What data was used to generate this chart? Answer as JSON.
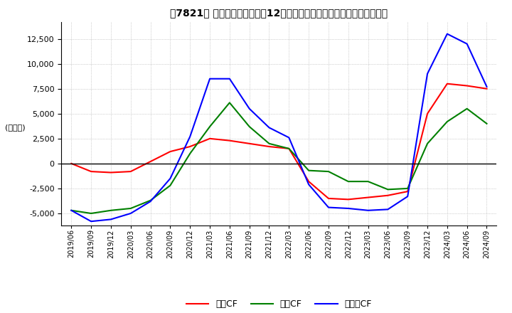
{
  "title": "【7821】 キャッシュフローの12か月移動合計の対前年同期増減額の推移",
  "ylabel": "(百万円)",
  "ylim": [
    -6200,
    14200
  ],
  "yticks": [
    -5000,
    -2500,
    0,
    2500,
    5000,
    7500,
    10000,
    12500
  ],
  "x_labels": [
    "2019/06",
    "2019/09",
    "2019/12",
    "2020/03",
    "2020/06",
    "2020/09",
    "2020/12",
    "2021/03",
    "2021/06",
    "2021/09",
    "2021/12",
    "2022/03",
    "2022/06",
    "2022/09",
    "2022/12",
    "2023/03",
    "2023/06",
    "2023/09",
    "2023/12",
    "2024/03",
    "2024/06",
    "2024/09"
  ],
  "operating_cf": [
    0,
    -800,
    -900,
    -800,
    200,
    1200,
    1700,
    2500,
    2300,
    2000,
    1700,
    1500,
    -1800,
    -3500,
    -3600,
    -3400,
    -3200,
    -2800,
    5000,
    8000,
    7800,
    7500
  ],
  "investing_cf": [
    -4700,
    -5000,
    -4700,
    -4500,
    -3700,
    -2200,
    1000,
    3700,
    6100,
    3700,
    2000,
    1500,
    -700,
    -800,
    -1800,
    -1800,
    -2600,
    -2500,
    2000,
    4200,
    5500,
    4000
  ],
  "free_cf": [
    -4700,
    -5800,
    -5600,
    -5000,
    -3800,
    -1500,
    2700,
    8500,
    8500,
    5500,
    3600,
    2600,
    -2100,
    -4400,
    -4500,
    -4700,
    -4600,
    -3300,
    9000,
    13000,
    12000,
    7700
  ],
  "operating_color": "#ff0000",
  "investing_color": "#008000",
  "free_color": "#0000ff",
  "bg_color": "#ffffff",
  "grid_color": "#aaaaaa",
  "legend_labels": [
    "営業CF",
    "投資CF",
    "フリーCF"
  ]
}
